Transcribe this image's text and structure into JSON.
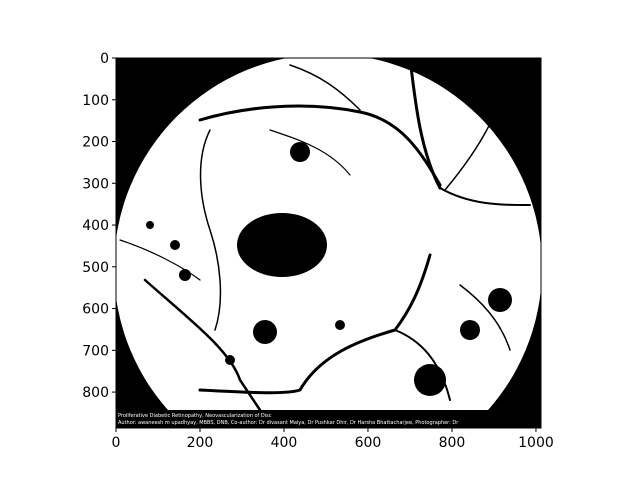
{
  "chart_data": {
    "type": "image",
    "xlim": [
      0,
      1012
    ],
    "ylim": [
      886,
      0
    ],
    "xticks": [
      0,
      200,
      400,
      600,
      800,
      1000
    ],
    "yticks": [
      0,
      100,
      200,
      300,
      400,
      500,
      600,
      700,
      800
    ],
    "annotations": [
      "Proliferative Diabetic Retinopathy, Neovascularization of Disc",
      "Author: awaneesh m upadhyay, MBBS, DNB, Co-author: Dr divasant Maiya, Dr Pushkar Dhir, Dr Harsha Bhattacharjee, Photographer: Dr"
    ]
  }
}
